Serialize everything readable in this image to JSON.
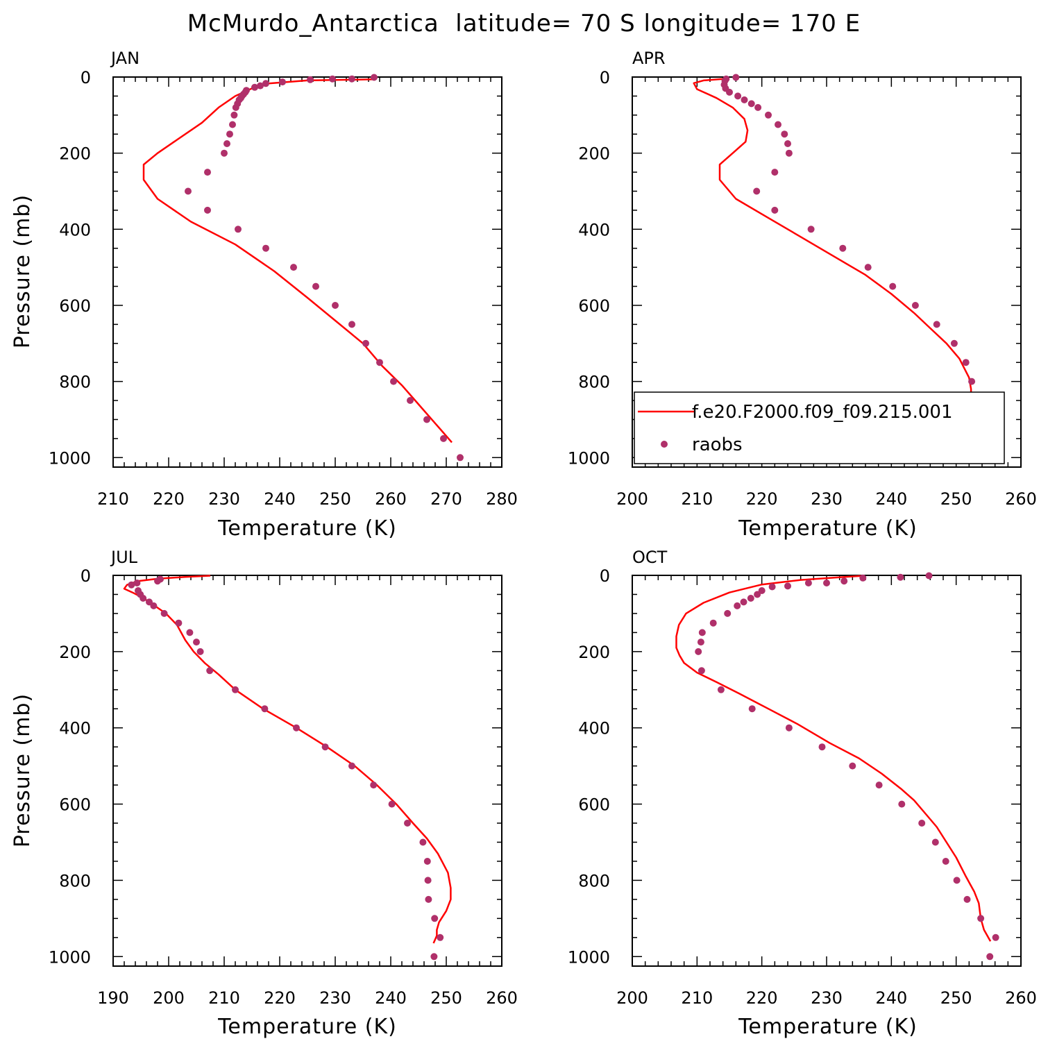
{
  "title": "McMurdo_Antarctica  latitude= 70 S longitude= 170 E",
  "colors": {
    "model": "#ff0000",
    "obs": "#b0306a",
    "axes": "#000000"
  },
  "legend": {
    "model_label": "f.e20.F2000.f09_f09.215.001",
    "obs_label": "raobs"
  },
  "chart_data": [
    {
      "type": "line",
      "panel": "JAN",
      "xlabel": "Temperature (K)",
      "ylabel": "Pressure (mb)",
      "xlim": [
        210,
        280
      ],
      "ylim": [
        1025,
        0
      ],
      "xticks": [
        210,
        220,
        230,
        240,
        250,
        260,
        270,
        280
      ],
      "yticks": [
        0,
        200,
        400,
        600,
        800,
        1000
      ],
      "series": [
        {
          "name": "f.e20.F2000.f09_f09.215.001",
          "style": "line",
          "points": [
            [
              257,
              6
            ],
            [
              245,
              9
            ],
            [
              238,
              17
            ],
            [
              235,
              30
            ],
            [
              232,
              50
            ],
            [
              229,
              80
            ],
            [
              226,
              120
            ],
            [
              221,
              170
            ],
            [
              218,
              200
            ],
            [
              215.5,
              230
            ],
            [
              215.5,
              270
            ],
            [
              218,
              320
            ],
            [
              224,
              380
            ],
            [
              232,
              440
            ],
            [
              239,
              510
            ],
            [
              245,
              580
            ],
            [
              250,
              640
            ],
            [
              255,
              700
            ],
            [
              258.5,
              760
            ],
            [
              262,
              810
            ],
            [
              265,
              860
            ],
            [
              268,
              910
            ],
            [
              271,
              960
            ]
          ]
        },
        {
          "name": "raobs",
          "style": "markers",
          "points": [
            [
              257,
              1
            ],
            [
              253,
              5
            ],
            [
              249.5,
              5
            ],
            [
              245.5,
              7
            ],
            [
              240.5,
              13
            ],
            [
              237.5,
              17
            ],
            [
              236.5,
              23
            ],
            [
              235.5,
              27
            ],
            [
              234,
              35
            ],
            [
              233.8,
              40
            ],
            [
              233.5,
              45
            ],
            [
              233.2,
              50
            ],
            [
              233,
              55
            ],
            [
              232.7,
              60
            ],
            [
              232.4,
              70
            ],
            [
              232.1,
              80
            ],
            [
              231.8,
              100
            ],
            [
              231.5,
              125
            ],
            [
              231,
              150
            ],
            [
              230.5,
              175
            ],
            [
              230,
              200
            ],
            [
              227,
              250
            ],
            [
              223.5,
              300
            ],
            [
              227,
              350
            ],
            [
              232.5,
              400
            ],
            [
              237.5,
              450
            ],
            [
              242.5,
              500
            ],
            [
              246.5,
              550
            ],
            [
              250,
              600
            ],
            [
              253,
              650
            ],
            [
              255.5,
              700
            ],
            [
              258,
              750
            ],
            [
              260.5,
              800
            ],
            [
              263.5,
              850
            ],
            [
              266.5,
              900
            ],
            [
              269.5,
              950
            ],
            [
              272.5,
              1000
            ]
          ]
        }
      ]
    },
    {
      "type": "line",
      "panel": "APR",
      "xlabel": "Temperature (K)",
      "ylabel": "",
      "xlim": [
        200,
        260
      ],
      "ylim": [
        1025,
        0
      ],
      "xticks": [
        200,
        210,
        220,
        230,
        240,
        250,
        260
      ],
      "yticks": [
        0,
        200,
        400,
        600,
        800,
        1000
      ],
      "series": [
        {
          "name": "f.e20.F2000.f09_f09.215.001",
          "style": "line",
          "points": [
            [
              214,
              5
            ],
            [
              211,
              9
            ],
            [
              209.5,
              16
            ],
            [
              210,
              32
            ],
            [
              213,
              55
            ],
            [
              215.5,
              80
            ],
            [
              217.3,
              110
            ],
            [
              217.8,
              140
            ],
            [
              217.5,
              170
            ],
            [
              215.5,
              200
            ],
            [
              213.5,
              230
            ],
            [
              213.5,
              270
            ],
            [
              216,
              320
            ],
            [
              221,
              370
            ],
            [
              226,
              420
            ],
            [
              231,
              470
            ],
            [
              236,
              520
            ],
            [
              240,
              570
            ],
            [
              243.5,
              620
            ],
            [
              246,
              660
            ],
            [
              248.5,
              700
            ],
            [
              250.5,
              740
            ],
            [
              252,
              790
            ],
            [
              252.3,
              820
            ],
            [
              252.3,
              850
            ],
            [
              252.5,
              880
            ],
            [
              252.5,
              910
            ],
            [
              253,
              940
            ],
            [
              254.5,
              960
            ],
            [
              256,
              980
            ]
          ]
        },
        {
          "name": "raobs",
          "style": "markers",
          "points": [
            [
              216,
              1
            ],
            [
              214.5,
              5
            ],
            [
              214.3,
              10
            ],
            [
              214.2,
              20
            ],
            [
              214.4,
              30
            ],
            [
              215,
              40
            ],
            [
              216.3,
              50
            ],
            [
              217.3,
              60
            ],
            [
              218.4,
              70
            ],
            [
              219.4,
              80
            ],
            [
              221,
              100
            ],
            [
              222.5,
              125
            ],
            [
              223.5,
              150
            ],
            [
              224,
              175
            ],
            [
              224.2,
              200
            ],
            [
              222,
              250
            ],
            [
              219.2,
              300
            ],
            [
              222,
              350
            ],
            [
              227.6,
              400
            ],
            [
              232.5,
              450
            ],
            [
              236.4,
              500
            ],
            [
              240.2,
              550
            ],
            [
              243.7,
              600
            ],
            [
              247,
              650
            ],
            [
              249.7,
              700
            ],
            [
              251.5,
              750
            ],
            [
              252.4,
              800
            ],
            [
              252.6,
              850
            ],
            [
              253.7,
              900
            ],
            [
              255.8,
              950
            ],
            [
              256.5,
              1000
            ]
          ]
        }
      ]
    },
    {
      "type": "line",
      "panel": "JUL",
      "xlabel": "Temperature (K)",
      "ylabel": "Pressure (mb)",
      "xlim": [
        190,
        260
      ],
      "ylim": [
        1025,
        0
      ],
      "xticks": [
        190,
        200,
        210,
        220,
        230,
        240,
        250,
        260
      ],
      "yticks": [
        0,
        200,
        400,
        600,
        800,
        1000
      ],
      "series": [
        {
          "name": "f.e20.F2000.f09_f09.215.001",
          "style": "line",
          "points": [
            [
              207.5,
              1
            ],
            [
              203,
              4
            ],
            [
              198,
              9
            ],
            [
              194.5,
              15
            ],
            [
              192.5,
              25
            ],
            [
              192,
              35
            ],
            [
              193.5,
              45
            ],
            [
              195.5,
              60
            ],
            [
              197.5,
              80
            ],
            [
              199.5,
              100
            ],
            [
              201.5,
              130
            ],
            [
              203,
              170
            ],
            [
              204.5,
              200
            ],
            [
              206.5,
              230
            ],
            [
              209,
              260
            ],
            [
              212,
              300
            ],
            [
              217,
              350
            ],
            [
              223,
              400
            ],
            [
              228.5,
              450
            ],
            [
              233.5,
              500
            ],
            [
              237.5,
              550
            ],
            [
              241,
              600
            ],
            [
              244,
              650
            ],
            [
              246.5,
              690
            ],
            [
              248.5,
              730
            ],
            [
              250.3,
              780
            ],
            [
              250.8,
              820
            ],
            [
              250.8,
              850
            ],
            [
              250,
              880
            ],
            [
              248.7,
              910
            ],
            [
              248.3,
              930
            ],
            [
              248.3,
              945
            ],
            [
              247.7,
              965
            ]
          ]
        },
        {
          "name": "raobs",
          "style": "markers",
          "points": [
            [
              198.5,
              10
            ],
            [
              198,
              15
            ],
            [
              194.3,
              20
            ],
            [
              193.3,
              25
            ],
            [
              194.5,
              40
            ],
            [
              194.9,
              50
            ],
            [
              195.4,
              60
            ],
            [
              196.5,
              70
            ],
            [
              197.3,
              80
            ],
            [
              199.2,
              100
            ],
            [
              201.8,
              125
            ],
            [
              203.8,
              150
            ],
            [
              205,
              175
            ],
            [
              205.7,
              200
            ],
            [
              207.4,
              250
            ],
            [
              212,
              300
            ],
            [
              217.3,
              350
            ],
            [
              223,
              400
            ],
            [
              228.2,
              450
            ],
            [
              233,
              500
            ],
            [
              236.9,
              550
            ],
            [
              240.2,
              600
            ],
            [
              243,
              650
            ],
            [
              245.8,
              700
            ],
            [
              246.6,
              750
            ],
            [
              246.7,
              800
            ],
            [
              246.8,
              850
            ],
            [
              247.9,
              900
            ],
            [
              248.9,
              950
            ],
            [
              247.8,
              1000
            ]
          ]
        }
      ]
    },
    {
      "type": "line",
      "panel": "OCT",
      "xlabel": "Temperature (K)",
      "ylabel": "",
      "xlim": [
        200,
        260
      ],
      "ylim": [
        1025,
        0
      ],
      "xticks": [
        200,
        210,
        220,
        230,
        240,
        250,
        260
      ],
      "yticks": [
        0,
        200,
        400,
        600,
        800,
        1000
      ],
      "series": [
        {
          "name": "f.e20.F2000.f09_f09.215.001",
          "style": "line",
          "points": [
            [
              235.8,
              1
            ],
            [
              232,
              5
            ],
            [
              226,
              12
            ],
            [
              220,
              24
            ],
            [
              215,
              45
            ],
            [
              211,
              72
            ],
            [
              208.3,
              100
            ],
            [
              207.2,
              130
            ],
            [
              206.8,
              160
            ],
            [
              206.8,
              190
            ],
            [
              207.3,
              210
            ],
            [
              208,
              230
            ],
            [
              210,
              255
            ],
            [
              213,
              280
            ],
            [
              216.5,
              310
            ],
            [
              221,
              350
            ],
            [
              225.5,
              390
            ],
            [
              230.5,
              440
            ],
            [
              235,
              480
            ],
            [
              238.5,
              520
            ],
            [
              241.5,
              560
            ],
            [
              243.5,
              590
            ],
            [
              245.5,
              630
            ],
            [
              247,
              660
            ],
            [
              248.5,
              700
            ],
            [
              250,
              740
            ],
            [
              251.5,
              790
            ],
            [
              252.8,
              830
            ],
            [
              253.5,
              860
            ],
            [
              253.8,
              900
            ],
            [
              254.3,
              930
            ],
            [
              255.3,
              960
            ]
          ]
        },
        {
          "name": "raobs",
          "style": "markers",
          "points": [
            [
              245.8,
              1
            ],
            [
              241.4,
              5
            ],
            [
              235.6,
              7
            ],
            [
              232.7,
              15
            ],
            [
              230,
              20
            ],
            [
              227.2,
              20
            ],
            [
              224,
              28
            ],
            [
              221.6,
              30
            ],
            [
              220,
              40
            ],
            [
              219.3,
              50
            ],
            [
              218.3,
              60
            ],
            [
              217.2,
              70
            ],
            [
              216.2,
              80
            ],
            [
              214.7,
              100
            ],
            [
              212.5,
              125
            ],
            [
              210.8,
              150
            ],
            [
              210.6,
              175
            ],
            [
              210.2,
              200
            ],
            [
              210.7,
              250
            ],
            [
              213.7,
              300
            ],
            [
              218.5,
              350
            ],
            [
              224.2,
              400
            ],
            [
              229.3,
              450
            ],
            [
              234,
              500
            ],
            [
              238.1,
              550
            ],
            [
              241.6,
              600
            ],
            [
              244.7,
              650
            ],
            [
              246.8,
              700
            ],
            [
              248.4,
              750
            ],
            [
              250.1,
              800
            ],
            [
              251.7,
              850
            ],
            [
              253.8,
              900
            ],
            [
              256.1,
              950
            ],
            [
              255.2,
              1000
            ]
          ]
        }
      ]
    }
  ]
}
